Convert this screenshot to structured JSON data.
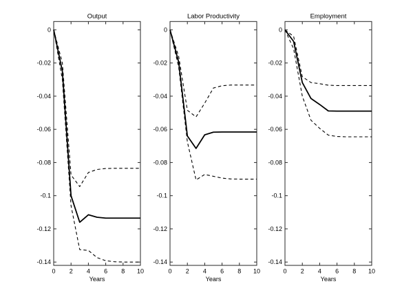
{
  "figure": {
    "background_color": "#ffffff",
    "axis_color": "#262626",
    "curve_color": "#000000"
  },
  "chart_data": [
    {
      "type": "line",
      "title": "Output",
      "xlabel": "Years",
      "ylabel": "",
      "x": [
        0,
        1,
        2,
        3,
        4,
        5,
        6,
        7,
        8,
        9,
        10
      ],
      "xlim": [
        0,
        10
      ],
      "ylim_top": 0.005,
      "ylim_bottom": -0.142,
      "xticks": [
        0,
        2,
        4,
        6,
        8,
        10
      ],
      "xtick_labels": [
        "0",
        "2",
        "4",
        "6",
        "8",
        "10"
      ],
      "yticks": [
        0,
        -0.02,
        -0.04,
        -0.06,
        -0.08,
        -0.1,
        -0.12,
        -0.14
      ],
      "ytick_labels": [
        "0",
        "-0.02",
        "-0.04",
        "-0.06",
        "-0.08",
        "-0.1",
        "-0.12",
        "-0.14"
      ],
      "grid": false,
      "legend": "none",
      "series": [
        {
          "name": "point-estimate",
          "style": "solid",
          "values": [
            0,
            -0.025,
            -0.1,
            -0.116,
            -0.1115,
            -0.113,
            -0.1135,
            -0.1135,
            -0.1135,
            -0.1135,
            -0.1135
          ]
        },
        {
          "name": "upper-confidence-band",
          "style": "dashed",
          "values": [
            0,
            -0.02,
            -0.0875,
            -0.0945,
            -0.086,
            -0.0842,
            -0.0836,
            -0.0835,
            -0.0835,
            -0.0835,
            -0.0835
          ]
        },
        {
          "name": "lower-confidence-band",
          "style": "dashed",
          "values": [
            0,
            -0.03,
            -0.106,
            -0.1325,
            -0.133,
            -0.1373,
            -0.1392,
            -0.1398,
            -0.14,
            -0.14,
            -0.14
          ]
        }
      ]
    },
    {
      "type": "line",
      "title": "Labor Productivity",
      "xlabel": "Years",
      "ylabel": "",
      "x": [
        0,
        1,
        2,
        3,
        4,
        5,
        6,
        7,
        8,
        9,
        10
      ],
      "xlim": [
        0,
        10
      ],
      "ylim_top": 0.005,
      "ylim_bottom": -0.142,
      "xticks": [
        0,
        2,
        4,
        6,
        8,
        10
      ],
      "xtick_labels": [
        "0",
        "2",
        "4",
        "6",
        "8",
        "10"
      ],
      "yticks": [
        0,
        -0.02,
        -0.04,
        -0.06,
        -0.08,
        -0.1,
        -0.12,
        -0.14
      ],
      "ytick_labels": [
        "0",
        "-0.02",
        "-0.04",
        "-0.06",
        "-0.08",
        "-0.1",
        "-0.12",
        "-0.14"
      ],
      "grid": false,
      "legend": "none",
      "series": [
        {
          "name": "point-estimate",
          "style": "solid",
          "values": [
            0,
            -0.0195,
            -0.064,
            -0.0715,
            -0.0633,
            -0.0617,
            -0.0616,
            -0.0616,
            -0.0616,
            -0.0616,
            -0.0616
          ]
        },
        {
          "name": "upper-confidence-band",
          "style": "dashed",
          "values": [
            0,
            -0.016,
            -0.0485,
            -0.0525,
            -0.0442,
            -0.0351,
            -0.0337,
            -0.0333,
            -0.0333,
            -0.0333,
            -0.0333
          ]
        },
        {
          "name": "lower-confidence-band",
          "style": "dashed",
          "values": [
            0,
            -0.0225,
            -0.0675,
            -0.0905,
            -0.0872,
            -0.0883,
            -0.0894,
            -0.0899,
            -0.09,
            -0.09,
            -0.09
          ]
        }
      ]
    },
    {
      "type": "line",
      "title": "Employment",
      "xlabel": "Years",
      "ylabel": "",
      "x": [
        0,
        1,
        2,
        3,
        4,
        5,
        6,
        7,
        8,
        9,
        10
      ],
      "xlim": [
        0,
        10
      ],
      "ylim_top": 0.005,
      "ylim_bottom": -0.142,
      "xticks": [
        0,
        2,
        4,
        6,
        8,
        10
      ],
      "xtick_labels": [
        "0",
        "2",
        "4",
        "6",
        "8",
        "10"
      ],
      "yticks": [
        0,
        -0.02,
        -0.04,
        -0.06,
        -0.08,
        -0.1,
        -0.12,
        -0.14
      ],
      "ytick_labels": [
        "0",
        "-0.02",
        "-0.04",
        "-0.06",
        "-0.08",
        "-0.1",
        "-0.12",
        "-0.14"
      ],
      "grid": false,
      "legend": "none",
      "series": [
        {
          "name": "point-estimate",
          "style": "solid",
          "values": [
            0,
            -0.007,
            -0.0318,
            -0.0414,
            -0.045,
            -0.0489,
            -0.049,
            -0.049,
            -0.049,
            -0.049,
            -0.049
          ]
        },
        {
          "name": "upper-confidence-band",
          "style": "dashed",
          "values": [
            0,
            -0.004,
            -0.0283,
            -0.0318,
            -0.0325,
            -0.0334,
            -0.0336,
            -0.0336,
            -0.0336,
            -0.0336,
            -0.0336
          ]
        },
        {
          "name": "lower-confidence-band",
          "style": "dashed",
          "values": [
            0,
            -0.0115,
            -0.04,
            -0.0545,
            -0.0594,
            -0.0635,
            -0.0643,
            -0.0645,
            -0.0645,
            -0.0645,
            -0.0645
          ]
        }
      ]
    }
  ]
}
